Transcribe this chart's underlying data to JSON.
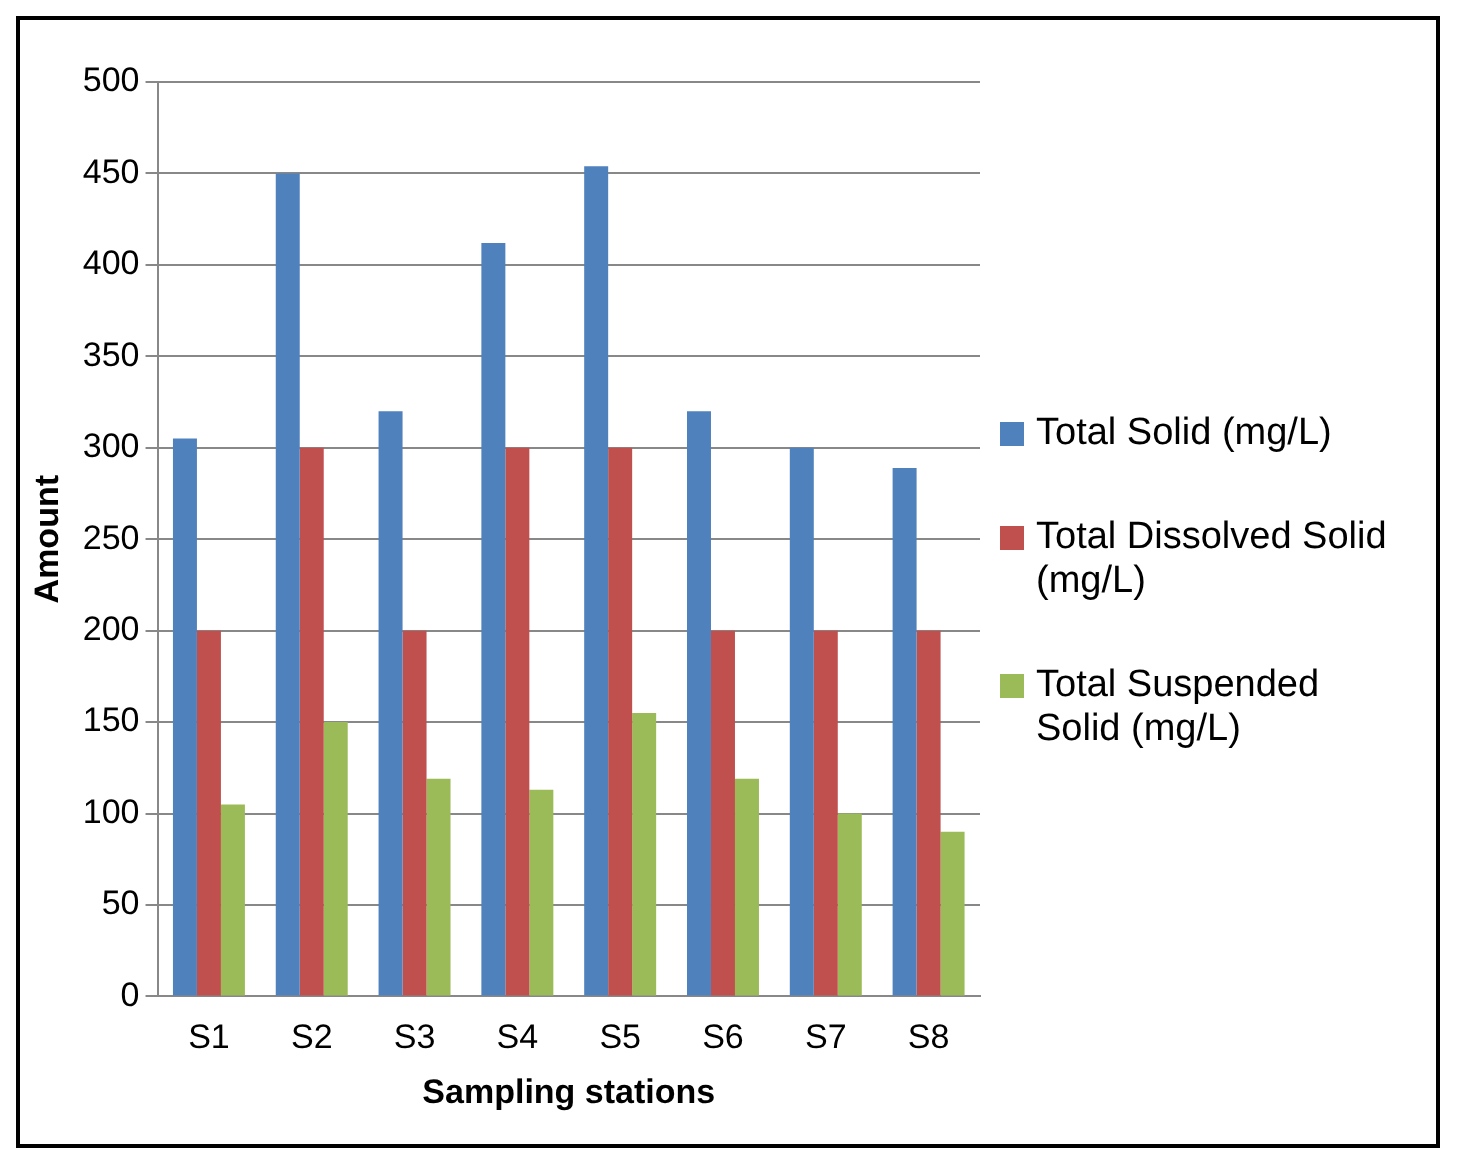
{
  "chart_data": {
    "type": "bar",
    "xlabel": "Sampling stations",
    "ylabel": "Amount",
    "categories": [
      "S1",
      "S2",
      "S3",
      "S4",
      "S5",
      "S6",
      "S7",
      "S8"
    ],
    "series": [
      {
        "name": "Total Solid (mg/L)",
        "color": "#4f81bd",
        "values": [
          305,
          450,
          320,
          412,
          454,
          320,
          300,
          289
        ]
      },
      {
        "name": "Total Dissolved Solid (mg/L)",
        "color": "#c0504d",
        "values": [
          200,
          300,
          200,
          300,
          300,
          200,
          200,
          200
        ]
      },
      {
        "name": "Total Suspended Solid (mg/L)",
        "color": "#9bbb59",
        "values": [
          105,
          150,
          119,
          113,
          155,
          119,
          100,
          90
        ]
      }
    ],
    "ylim": [
      0,
      500
    ],
    "yticks": [
      0,
      50,
      100,
      150,
      200,
      250,
      300,
      350,
      400,
      450,
      500
    ],
    "grid": "y",
    "legend": "right"
  }
}
